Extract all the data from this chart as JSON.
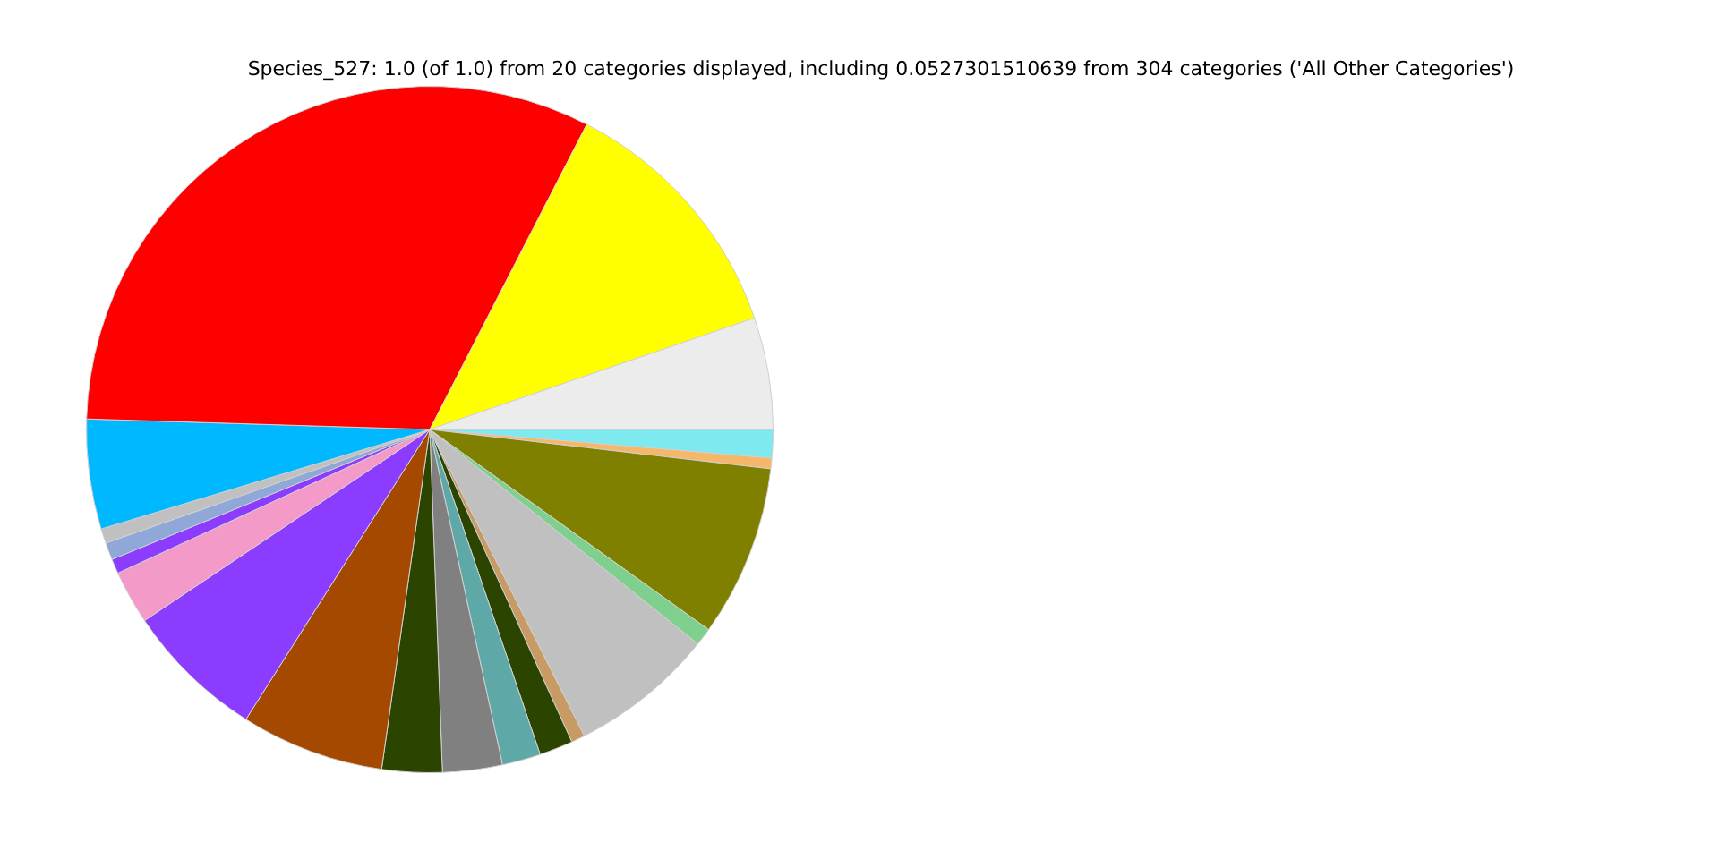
{
  "chart_data": {
    "type": "pie",
    "title": "Species_527: 1.0 (of 1.0) from 20 categories displayed, including 0.0527301510639 from 304 categories ('All Other Categories')",
    "categories": [
      null,
      null,
      null,
      null,
      null,
      null,
      null,
      null,
      null,
      null,
      null,
      null,
      null,
      null,
      null,
      null,
      null,
      null,
      null,
      null
    ],
    "values": [
      1.33,
      0.5,
      8.08,
      0.83,
      6.83,
      0.64,
      1.58,
      1.81,
      2.81,
      2.83,
      6.75,
      6.61,
      2.53,
      0.69,
      0.81,
      0.69,
      5.17,
      32.07,
      12.17,
      5.27
    ],
    "colors": [
      "#7fe9f0",
      "#f5b86a",
      "#808000",
      "#7fcf8f",
      "#c0c0c0",
      "#c89a64",
      "#2b4400",
      "#5fa8a8",
      "#808080",
      "#2b4400",
      "#a54800",
      "#8b3cff",
      "#f49ac8",
      "#8b3cff",
      "#8fa8d8",
      "#c0c0c0",
      "#00b8ff",
      "#ff0000",
      "#ffff00",
      "#ececec"
    ]
  }
}
